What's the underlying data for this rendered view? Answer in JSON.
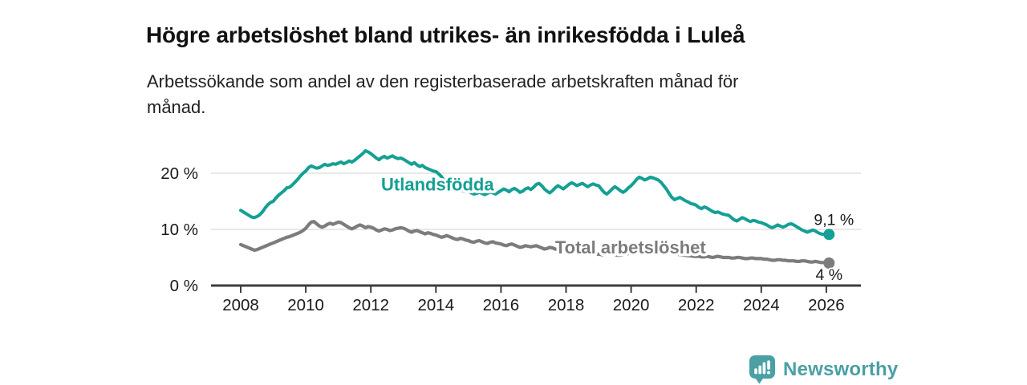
{
  "header": {
    "title": "Högre arbetslöshet bland utrikes- än inrikesfödda i Luleå",
    "subtitle": "Arbetssökande som andel av den registerbaserade arbetskraften månad för månad.",
    "subtitle_lines": [
      "Arbetssökande som andel av den registerbaserade arbetskraften månad för",
      "månad."
    ]
  },
  "colors": {
    "accent_teal": "#14a094",
    "series_gray": "#7c7c7c",
    "grid": "#d9d9d9",
    "axis": "#3d3d3d",
    "text": "#1a1a1a",
    "logo_teal": "#4aa0a4",
    "background": "#ffffff"
  },
  "chart_data": {
    "type": "line",
    "title": "Högre arbetslöshet bland utrikes- än inrikesfödda i Luleå",
    "subtitle": "Arbetssökande som andel av den registerbaserade arbetskraften månad för månad.",
    "xlabel": "",
    "ylabel": "",
    "frequency": "monthly",
    "x_start": {
      "year": 2008,
      "month": 1
    },
    "x_end": {
      "year": 2026,
      "month": 2
    },
    "ylim": [
      0,
      25
    ],
    "grid": "horizontal-only",
    "legend_position": "inline-labels-on-lines",
    "yticks": [
      {
        "value": 0,
        "label": "0 %"
      },
      {
        "value": 10,
        "label": "10 %"
      },
      {
        "value": 20,
        "label": "20 %"
      }
    ],
    "gridline_values": [
      10,
      20
    ],
    "xticks": [
      2008,
      2010,
      2012,
      2014,
      2016,
      2018,
      2020,
      2022,
      2024,
      2026
    ],
    "series": [
      {
        "name": "Utlandsfödda",
        "color": "#14a094",
        "line_width": 4,
        "label": {
          "text": "Utlandsfödda",
          "anchor_year": 2014.05,
          "anchor_value": 16.9
        },
        "end_dot": true,
        "end_annotation": {
          "text": "9,1 %",
          "dx": 31,
          "dy": -12,
          "anchor": "end"
        },
        "last_value": 9.1,
        "values": [
          13.4,
          13.1,
          12.8,
          12.5,
          12.2,
          12.1,
          12.3,
          12.6,
          13.1,
          13.8,
          14.4,
          14.8,
          15.0,
          15.6,
          16.1,
          16.5,
          16.9,
          17.4,
          17.5,
          17.9,
          18.4,
          18.9,
          19.5,
          20.0,
          20.4,
          21.0,
          21.3,
          21.1,
          20.9,
          21.0,
          21.3,
          21.6,
          21.4,
          21.5,
          21.7,
          21.6,
          21.8,
          22.0,
          21.7,
          21.9,
          22.2,
          22.0,
          22.3,
          22.7,
          23.1,
          23.5,
          24.0,
          23.8,
          23.5,
          23.1,
          22.7,
          22.4,
          22.8,
          23.0,
          22.7,
          22.9,
          23.1,
          22.8,
          22.6,
          22.7,
          22.5,
          22.2,
          21.9,
          21.6,
          21.9,
          21.5,
          21.2,
          21.4,
          21.0,
          20.8,
          20.6,
          20.4,
          20.3,
          19.9,
          19.4,
          18.8,
          18.2,
          17.7,
          17.3,
          17.0,
          16.8,
          17.0,
          16.9,
          16.7,
          16.8,
          16.5,
          16.3,
          16.4,
          16.6,
          16.4,
          16.2,
          16.4,
          16.7,
          16.5,
          16.3,
          16.6,
          16.9,
          17.2,
          17.0,
          16.7,
          17.1,
          17.3,
          17.0,
          16.6,
          16.8,
          17.2,
          17.4,
          17.1,
          17.5,
          18.0,
          18.2,
          17.8,
          17.2,
          16.8,
          16.5,
          16.9,
          17.4,
          17.8,
          17.5,
          17.2,
          17.6,
          18.0,
          18.3,
          18.1,
          17.8,
          18.0,
          18.2,
          17.9,
          17.6,
          17.9,
          18.1,
          17.9,
          17.8,
          17.2,
          16.6,
          16.3,
          16.7,
          17.2,
          17.6,
          17.3,
          16.9,
          16.6,
          16.9,
          17.4,
          17.8,
          18.3,
          18.9,
          19.3,
          19.1,
          18.8,
          19.0,
          19.3,
          19.2,
          19.0,
          18.8,
          18.4,
          17.8,
          17.2,
          16.4,
          15.7,
          15.3,
          15.5,
          15.7,
          15.4,
          15.1,
          14.9,
          14.6,
          14.5,
          14.3,
          13.9,
          13.7,
          14.0,
          13.8,
          13.5,
          13.2,
          13.0,
          13.1,
          12.9,
          12.7,
          12.6,
          12.5,
          12.1,
          11.7,
          11.5,
          11.8,
          12.1,
          11.9,
          11.6,
          11.4,
          11.6,
          11.5,
          11.3,
          11.2,
          11.0,
          10.8,
          10.5,
          10.3,
          10.5,
          10.8,
          10.6,
          10.4,
          10.6,
          10.9,
          11.0,
          10.8,
          10.5,
          10.2,
          9.9,
          9.7,
          9.5,
          9.7,
          9.9,
          9.7,
          9.4,
          9.2,
          9.1,
          9.3,
          9.1
        ]
      },
      {
        "name": "Total arbetslöshet",
        "color": "#7c7c7c",
        "line_width": 4.2,
        "label": {
          "text": "Total arbetslöshet",
          "anchor_year": 2019.98,
          "anchor_value": 5.72
        },
        "end_dot": true,
        "end_annotation": {
          "text": "4 %",
          "dx": 0,
          "dy": 21,
          "anchor": "middle"
        },
        "last_value": 4.0,
        "values": [
          7.3,
          7.1,
          6.9,
          6.7,
          6.5,
          6.3,
          6.4,
          6.6,
          6.8,
          7.0,
          7.2,
          7.4,
          7.6,
          7.8,
          8.0,
          8.2,
          8.4,
          8.6,
          8.7,
          8.9,
          9.1,
          9.3,
          9.5,
          9.8,
          10.2,
          10.8,
          11.3,
          11.4,
          11.0,
          10.6,
          10.4,
          10.6,
          10.9,
          11.1,
          10.9,
          11.1,
          11.3,
          11.2,
          10.9,
          10.6,
          10.3,
          10.1,
          10.3,
          10.6,
          10.8,
          10.6,
          10.3,
          10.5,
          10.4,
          10.2,
          9.9,
          9.7,
          9.9,
          10.1,
          10.0,
          9.8,
          9.9,
          10.1,
          10.2,
          10.3,
          10.2,
          10.0,
          9.7,
          9.5,
          9.7,
          9.8,
          9.6,
          9.4,
          9.2,
          9.4,
          9.3,
          9.1,
          9.0,
          8.8,
          8.6,
          8.7,
          8.9,
          8.7,
          8.5,
          8.3,
          8.2,
          8.4,
          8.3,
          8.1,
          8.0,
          7.8,
          7.7,
          7.9,
          8.0,
          7.8,
          7.6,
          7.5,
          7.7,
          7.8,
          7.6,
          7.5,
          7.4,
          7.2,
          7.1,
          7.3,
          7.4,
          7.2,
          7.0,
          6.8,
          6.9,
          7.1,
          7.0,
          6.9,
          7.0,
          7.1,
          6.9,
          6.7,
          6.5,
          6.6,
          6.8,
          6.7,
          6.5,
          6.4,
          6.3,
          6.2,
          6.1,
          6.0,
          5.9,
          6.0,
          6.1,
          6.0,
          5.9,
          5.8,
          5.7,
          5.8,
          5.7,
          5.6,
          5.6,
          5.5,
          5.5,
          5.6,
          5.7,
          5.6,
          5.5,
          5.4,
          5.4,
          5.5,
          5.6,
          5.7,
          5.8,
          5.9,
          6.2,
          6.5,
          6.7,
          6.8,
          6.7,
          6.6,
          6.5,
          6.4,
          6.3,
          6.2,
          6.1,
          6.0,
          5.9,
          5.8,
          5.7,
          5.6,
          5.5,
          5.4,
          5.4,
          5.3,
          5.3,
          5.2,
          5.2,
          5.2,
          5.1,
          5.1,
          5.2,
          5.1,
          5.0,
          5.1,
          5.2,
          5.1,
          5.0,
          5.0,
          5.0,
          4.9,
          4.9,
          5.0,
          5.0,
          4.9,
          4.8,
          4.8,
          4.9,
          4.9,
          4.8,
          4.8,
          4.8,
          4.7,
          4.7,
          4.6,
          4.5,
          4.5,
          4.6,
          4.6,
          4.5,
          4.5,
          4.4,
          4.4,
          4.4,
          4.3,
          4.3,
          4.4,
          4.4,
          4.3,
          4.2,
          4.2,
          4.3,
          4.2,
          4.1,
          4.1,
          4.1,
          4.0
        ]
      }
    ]
  },
  "branding": {
    "logo_text": "Newsworthy",
    "logo_icon": "newsworthy-bubble-bars-icon"
  }
}
